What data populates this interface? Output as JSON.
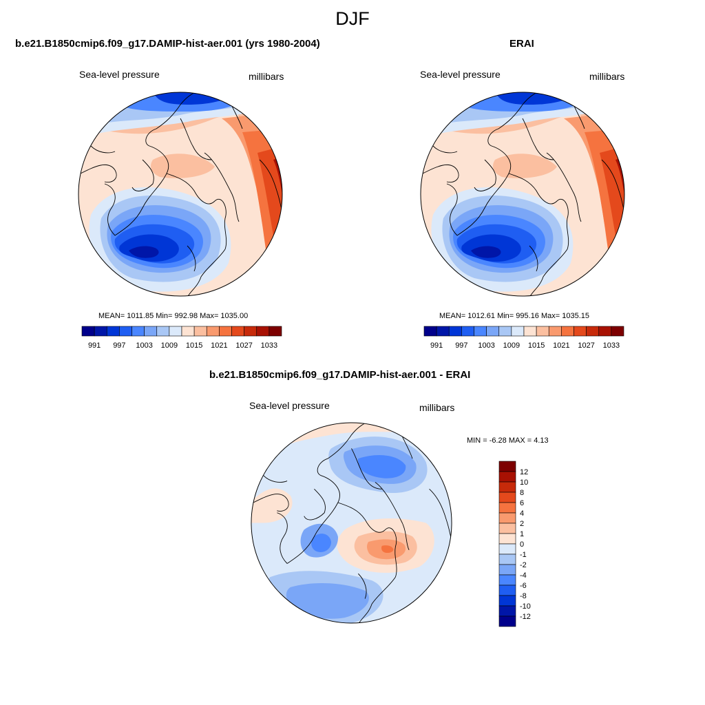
{
  "figure": {
    "title": "DJF"
  },
  "panels": [
    {
      "id": "model",
      "title": "b.e21.B1850cmip6.f09_g17.DAMIP-hist-aer.001 (yrs 1980-2004)",
      "left_label": "Sea-level pressure",
      "right_label": "millibars",
      "stats": "MEAN= 1011.85  Min= 992.98  Max= 1035.00",
      "colorbar_ticks": [
        "991",
        "997",
        "1003",
        "1009",
        "1015",
        "1021",
        "1027",
        "1033"
      ]
    },
    {
      "id": "obs",
      "title": "ERAI",
      "left_label": "Sea-level pressure",
      "right_label": "millibars",
      "stats": "MEAN= 1012.61  Min= 995.16  Max= 1035.15",
      "colorbar_ticks": [
        "991",
        "997",
        "1003",
        "1009",
        "1015",
        "1021",
        "1027",
        "1033"
      ]
    },
    {
      "id": "diff",
      "title": "b.e21.B1850cmip6.f09_g17.DAMIP-hist-aer.001 - ERAI",
      "left_label": "Sea-level pressure",
      "right_label": "millibars",
      "stats": "MIN =  -6.28 MAX =   4.13",
      "colorbar_ticks": [
        "12",
        "10",
        "8",
        "6",
        "4",
        "2",
        "1",
        "0",
        "-1",
        "-2",
        "-4",
        "-6",
        "-8",
        "-10",
        "-12"
      ]
    }
  ],
  "palette": {
    "abs": [
      "#00008b",
      "#0016a8",
      "#0036d6",
      "#1f5ef2",
      "#4a86ff",
      "#7aa6f7",
      "#a9c7f5",
      "#dbe9fa",
      "#fde3d3",
      "#fbbfa0",
      "#f99a6e",
      "#f5733f",
      "#e4491c",
      "#c72a0a",
      "#a81103",
      "#7d0000"
    ],
    "diff": [
      "#7d0000",
      "#a81103",
      "#c72a0a",
      "#e4491c",
      "#f5733f",
      "#f99a6e",
      "#fbbfa0",
      "#fde3d3",
      "#dbe9fa",
      "#a9c7f5",
      "#7aa6f7",
      "#4a86ff",
      "#1f5ef2",
      "#0036d6",
      "#0016a8",
      "#00008b"
    ]
  }
}
